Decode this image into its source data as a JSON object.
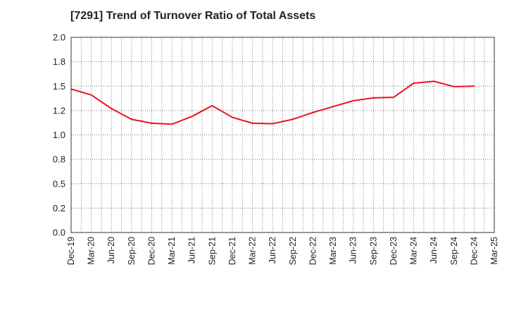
{
  "chart_data": {
    "type": "line",
    "title": "[7291]  Trend of Turnover Ratio of Total Assets",
    "xlabel": "",
    "ylabel": "",
    "ylim": [
      0.0,
      2.0
    ],
    "yticks": [
      "0.0",
      "0.2",
      "0.5",
      "0.8",
      "1.0",
      "1.2",
      "1.5",
      "1.8",
      "2.0"
    ],
    "ytick_values": [
      0.0,
      0.25,
      0.5,
      0.75,
      1.0,
      1.25,
      1.5,
      1.75,
      2.0
    ],
    "grid": true,
    "categories": [
      "Dec-19",
      "Mar-20",
      "Jun-20",
      "Sep-20",
      "Dec-20",
      "Mar-21",
      "Jun-21",
      "Sep-21",
      "Dec-21",
      "Mar-22",
      "Jun-22",
      "Sep-22",
      "Dec-22",
      "Mar-23",
      "Jun-23",
      "Sep-23",
      "Dec-23",
      "Mar-24",
      "Jun-24",
      "Sep-24",
      "Dec-24",
      "Mar-25"
    ],
    "series": [
      {
        "name": "",
        "color": "#e8141b",
        "values": [
          1.47,
          1.41,
          1.27,
          1.16,
          1.12,
          1.11,
          1.19,
          1.3,
          1.18,
          1.12,
          1.115,
          1.16,
          1.23,
          1.29,
          1.35,
          1.38,
          1.385,
          1.53,
          1.55,
          1.495,
          1.5,
          null
        ]
      }
    ]
  }
}
